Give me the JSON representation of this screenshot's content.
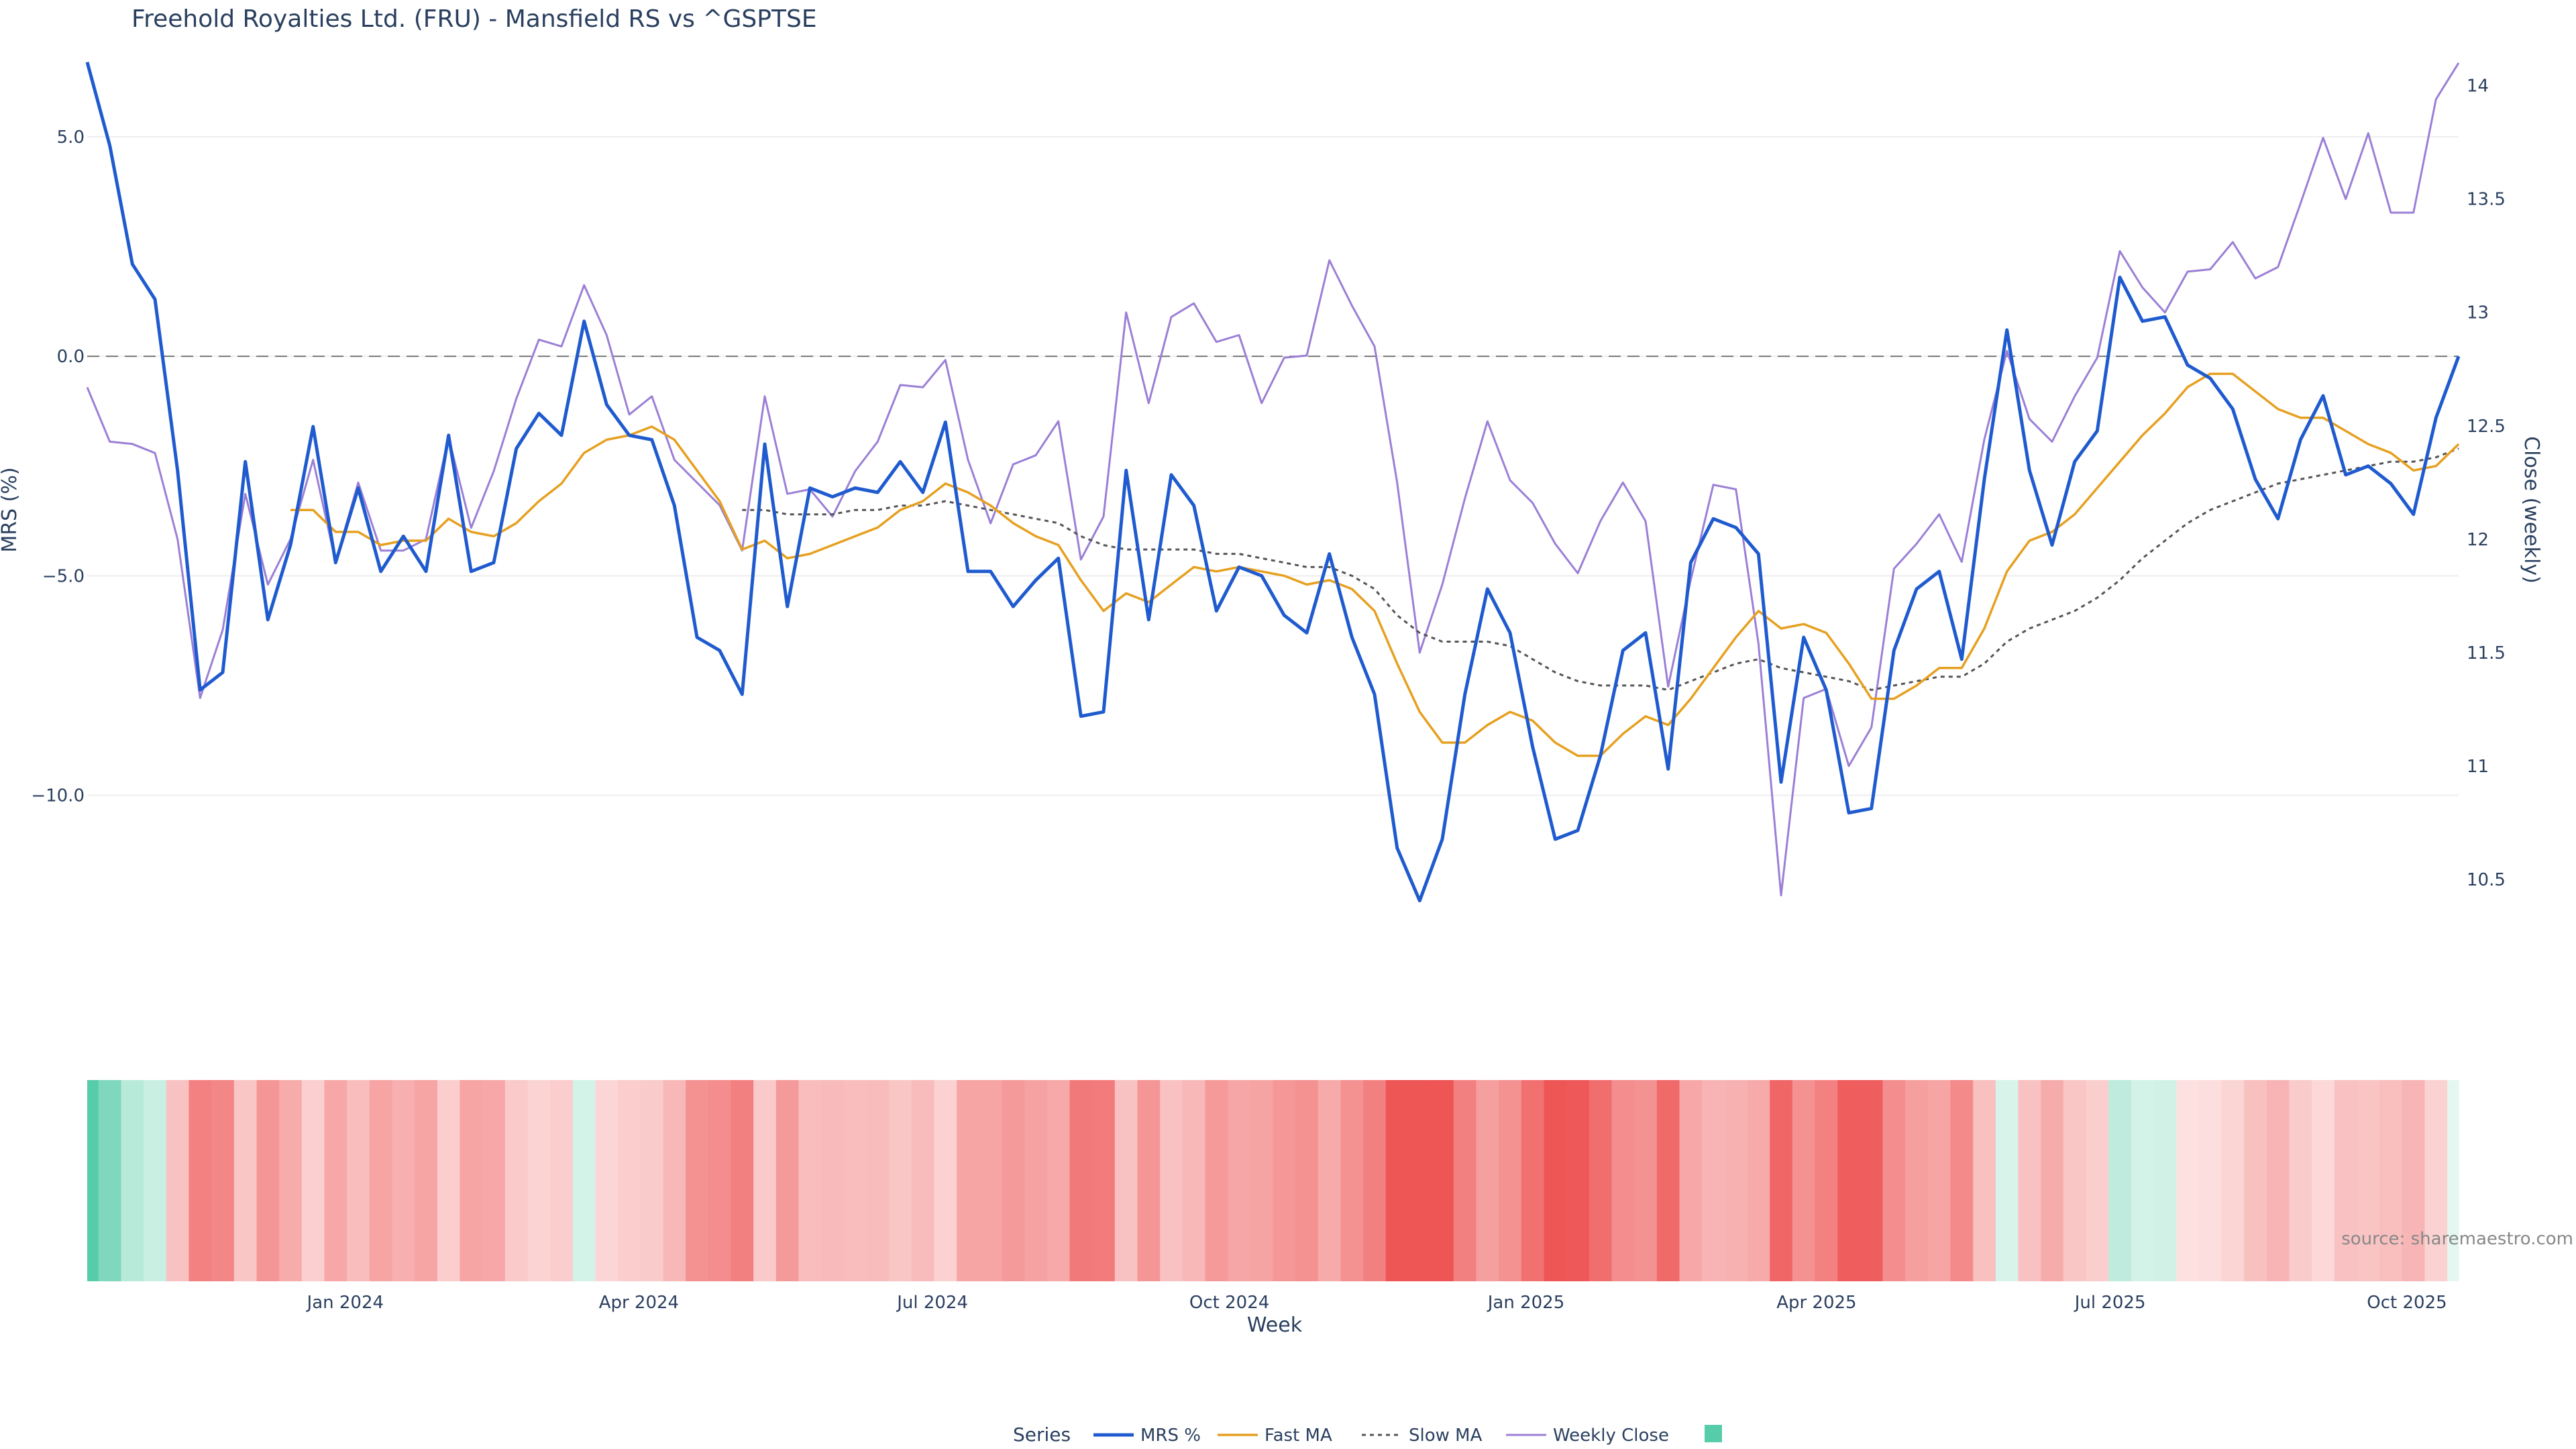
{
  "title": "Freehold Royalties Ltd. (FRU) - Mansfield RS vs ^GSPTSE",
  "source": "source: sharemaestro.com",
  "colors": {
    "mrs": "#1f5bcf",
    "fast": "#e6a020",
    "slow": "#555555",
    "close": "#9b7fd6",
    "zero": "#777777",
    "grid": "#eeeeee",
    "pos_strong": "#57ccaa",
    "neg_strong": "#ee5555"
  },
  "legend": {
    "title": "Series",
    "items": [
      "MRS %",
      "Fast MA",
      "Slow MA",
      "Weekly Close"
    ]
  },
  "chart_data": {
    "type": "line",
    "title": "Freehold Royalties Ltd. (FRU) - Mansfield RS vs ^GSPTSE",
    "xlabel": "Week",
    "ylabel_left": "MRS (%)",
    "ylabel_right": "Close (weekly)",
    "x_start": "2023-10-13",
    "x_step_days": 7,
    "x_ticks": [
      "Jan 2024",
      "Apr 2024",
      "Jul 2024",
      "Oct 2024",
      "Jan 2025",
      "Apr 2025",
      "Jul 2025",
      "Oct 2025"
    ],
    "y_left_ticks": [
      5.0,
      0.0,
      -5.0,
      -10.0
    ],
    "y_left_tick_labels": [
      "5.0",
      "0.0",
      "−5.0",
      "−10.0"
    ],
    "y_left_range": [
      -14.5,
      7.2
    ],
    "y_right_ticks": [
      10.5,
      11,
      11.5,
      12,
      12.5,
      13,
      13.5,
      14
    ],
    "y_right_tick_labels": [
      "10.5",
      "11",
      "11.5",
      "12",
      "12.5",
      "13",
      "13.5",
      "14"
    ],
    "y_right_range": [
      10.0,
      14.2
    ],
    "zero_line": 0.0,
    "grid": true,
    "legend_position": "bottom-center",
    "series": [
      {
        "name": "MRS %",
        "axis": "left",
        "style": "solid",
        "values": [
          6.7,
          4.8,
          2.1,
          1.3,
          -2.6,
          -7.6,
          -7.2,
          -2.4,
          -6.0,
          -4.3,
          -1.6,
          -4.7,
          -3.0,
          -4.9,
          -4.1,
          -4.9,
          -1.8,
          -4.9,
          -4.7,
          -2.1,
          -1.3,
          -1.8,
          0.8,
          -1.1,
          -1.8,
          -1.9,
          -3.4,
          -6.4,
          -6.7,
          -7.7,
          -2.0,
          -5.7,
          -3.0,
          -3.2,
          -3.0,
          -3.1,
          -2.4,
          -3.1,
          -1.5,
          -4.9,
          -4.9,
          -5.7,
          -5.1,
          -4.6,
          -8.2,
          -8.1,
          -2.6,
          -6.0,
          -2.7,
          -3.4,
          -5.8,
          -4.8,
          -5.0,
          -5.9,
          -6.3,
          -4.5,
          -6.4,
          -7.7,
          -11.2,
          -12.4,
          -11.0,
          -7.7,
          -5.3,
          -6.3,
          -8.9,
          -11.0,
          -10.8,
          -9.1,
          -6.7,
          -6.3,
          -9.4,
          -4.7,
          -3.7,
          -3.9,
          -4.5,
          -9.7,
          -6.4,
          -7.6,
          -10.4,
          -10.3,
          -6.7,
          -5.3,
          -4.9,
          -6.9,
          -2.8,
          0.6,
          -2.6,
          -4.3,
          -2.4,
          -1.7,
          1.8,
          0.8,
          0.9,
          -0.2,
          -0.5,
          -1.2,
          -2.8,
          -3.7,
          -1.9,
          -0.9,
          -2.7,
          -2.5,
          -2.9,
          -3.6,
          -1.4,
          0.0
        ]
      },
      {
        "name": "Fast MA",
        "axis": "left",
        "style": "solid",
        "values": [
          null,
          null,
          null,
          null,
          null,
          null,
          null,
          null,
          null,
          -3.5,
          -3.5,
          -4.0,
          -4.0,
          -4.3,
          -4.2,
          -4.2,
          -3.7,
          -4.0,
          -4.1,
          -3.8,
          -3.3,
          -2.9,
          -2.2,
          -1.9,
          -1.8,
          -1.6,
          -1.9,
          -2.6,
          -3.3,
          -4.4,
          -4.2,
          -4.6,
          -4.5,
          -4.3,
          -4.1,
          -3.9,
          -3.5,
          -3.3,
          -2.9,
          -3.1,
          -3.4,
          -3.8,
          -4.1,
          -4.3,
          -5.1,
          -5.8,
          -5.4,
          -5.6,
          -5.2,
          -4.8,
          -4.9,
          -4.8,
          -4.9,
          -5.0,
          -5.2,
          -5.1,
          -5.3,
          -5.8,
          -7.0,
          -8.1,
          -8.8,
          -8.8,
          -8.4,
          -8.1,
          -8.3,
          -8.8,
          -9.1,
          -9.1,
          -8.6,
          -8.2,
          -8.4,
          -7.8,
          -7.1,
          -6.4,
          -5.8,
          -6.2,
          -6.1,
          -6.3,
          -7.0,
          -7.8,
          -7.8,
          -7.5,
          -7.1,
          -7.1,
          -6.2,
          -4.9,
          -4.2,
          -4.0,
          -3.6,
          -3.0,
          -2.4,
          -1.8,
          -1.3,
          -0.7,
          -0.4,
          -0.4,
          -0.8,
          -1.2,
          -1.4,
          -1.4,
          -1.7,
          -2.0,
          -2.2,
          -2.6,
          -2.5,
          -2.0
        ]
      },
      {
        "name": "Slow MA",
        "axis": "left",
        "style": "dot",
        "values": [
          null,
          null,
          null,
          null,
          null,
          null,
          null,
          null,
          null,
          null,
          null,
          null,
          null,
          null,
          null,
          null,
          null,
          null,
          null,
          null,
          null,
          null,
          null,
          null,
          null,
          null,
          null,
          null,
          null,
          -3.5,
          -3.5,
          -3.6,
          -3.6,
          -3.6,
          -3.5,
          -3.5,
          -3.4,
          -3.4,
          -3.3,
          -3.4,
          -3.5,
          -3.6,
          -3.7,
          -3.8,
          -4.1,
          -4.3,
          -4.4,
          -4.4,
          -4.4,
          -4.4,
          -4.5,
          -4.5,
          -4.6,
          -4.7,
          -4.8,
          -4.8,
          -5.0,
          -5.3,
          -5.9,
          -6.3,
          -6.5,
          -6.5,
          -6.5,
          -6.6,
          -6.9,
          -7.2,
          -7.4,
          -7.5,
          -7.5,
          -7.5,
          -7.6,
          -7.4,
          -7.2,
          -7.0,
          -6.9,
          -7.1,
          -7.2,
          -7.3,
          -7.4,
          -7.6,
          -7.5,
          -7.4,
          -7.3,
          -7.3,
          -7.0,
          -6.5,
          -6.2,
          -6.0,
          -5.8,
          -5.5,
          -5.1,
          -4.6,
          -4.2,
          -3.8,
          -3.5,
          -3.3,
          -3.1,
          -2.9,
          -2.8,
          -2.7,
          -2.6,
          -2.5,
          -2.4,
          -2.4,
          -2.3,
          -2.1
        ]
      },
      {
        "name": "Weekly Close",
        "axis": "right",
        "style": "solid",
        "values": [
          12.67,
          12.43,
          12.42,
          12.38,
          12.0,
          11.3,
          11.6,
          12.2,
          11.8,
          12.0,
          12.35,
          11.9,
          12.25,
          11.95,
          11.95,
          12.0,
          12.45,
          12.05,
          12.3,
          12.62,
          12.88,
          12.85,
          13.12,
          12.9,
          12.55,
          12.63,
          12.35,
          12.25,
          12.15,
          11.95,
          12.63,
          12.2,
          12.22,
          12.1,
          12.3,
          12.43,
          12.68,
          12.67,
          12.79,
          12.35,
          12.07,
          12.33,
          12.37,
          12.52,
          11.91,
          12.1,
          13.0,
          12.6,
          12.98,
          13.04,
          12.87,
          12.9,
          12.6,
          12.8,
          12.81,
          13.23,
          13.03,
          12.85,
          12.25,
          11.5,
          11.8,
          12.18,
          12.52,
          12.26,
          12.16,
          11.98,
          11.85,
          12.08,
          12.25,
          12.08,
          11.35,
          11.82,
          12.24,
          12.22,
          11.54,
          10.43,
          11.3,
          11.34,
          11.0,
          11.17,
          11.87,
          11.98,
          12.11,
          11.9,
          12.44,
          12.83,
          12.53,
          12.43,
          12.63,
          12.8,
          13.27,
          13.11,
          13.0,
          13.18,
          13.19,
          13.31,
          13.15,
          13.2,
          13.48,
          13.77,
          13.5,
          13.79,
          13.44,
          13.44,
          13.94,
          14.1
        ]
      }
    ],
    "heatmap": {
      "description_values": "weekly MRS % bands, green positive / red negative",
      "values": [
        6.7,
        4.8,
        2.1,
        1.3,
        -2.6,
        -7.6,
        -7.2,
        -2.4,
        -6.0,
        -4.3,
        -1.6,
        -4.7,
        -3.0,
        -4.9,
        -4.1,
        -4.9,
        -1.8,
        -4.9,
        -4.7,
        -2.1,
        -1.3,
        -1.8,
        0.8,
        -1.1,
        -1.8,
        -1.9,
        -3.4,
        -6.4,
        -6.7,
        -7.7,
        -2.0,
        -5.7,
        -3.0,
        -3.2,
        -3.0,
        -3.1,
        -2.4,
        -3.1,
        -1.5,
        -4.9,
        -4.9,
        -5.7,
        -5.1,
        -4.6,
        -8.2,
        -8.1,
        -2.6,
        -6.0,
        -2.7,
        -3.4,
        -5.8,
        -4.8,
        -5.0,
        -5.9,
        -6.3,
        -4.5,
        -6.4,
        -7.7,
        -11.2,
        -12.4,
        -11.0,
        -7.7,
        -5.3,
        -6.3,
        -8.9,
        -11.0,
        -10.8,
        -9.1,
        -6.7,
        -6.3,
        -9.4,
        -4.7,
        -3.7,
        -3.9,
        -4.5,
        -9.7,
        -6.4,
        -7.6,
        -10.4,
        -10.3,
        -6.7,
        -5.3,
        -4.9,
        -6.9,
        -2.8,
        0.6,
        -2.6,
        -4.3,
        -2.4,
        -1.7,
        1.8,
        0.8,
        0.9,
        -0.2,
        -0.5,
        -1.2,
        -2.8,
        -3.7,
        -1.9,
        -0.9,
        -2.7,
        -2.5,
        -2.9,
        -3.6,
        -1.4,
        0.0
      ]
    }
  }
}
